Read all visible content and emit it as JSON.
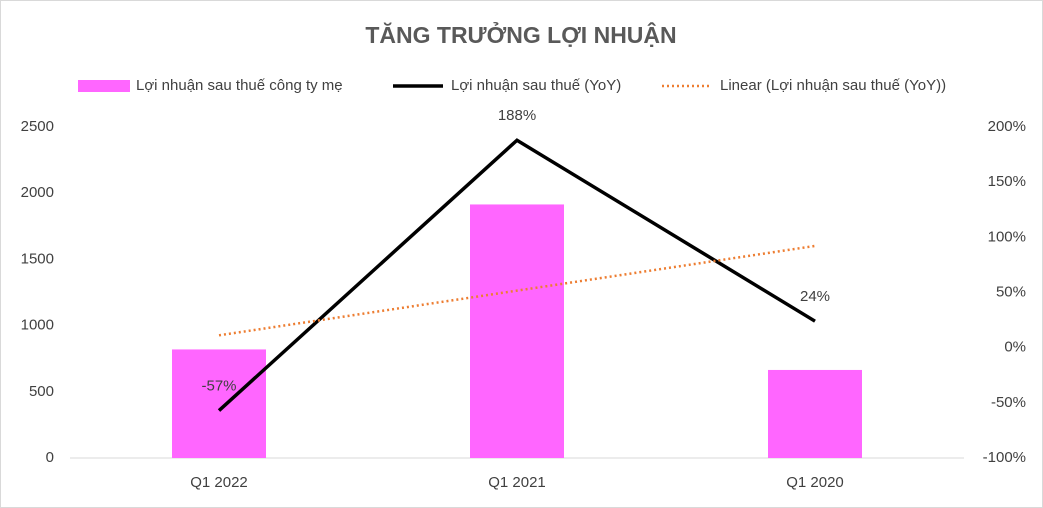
{
  "chart_data": {
    "type": "combo",
    "title": "TĂNG TRƯỞNG LỢI NHUẬN",
    "categories": [
      "Q1 2022",
      "Q1 2021",
      "Q1 2020"
    ],
    "series": [
      {
        "name": "Lợi nhuận sau thuế công ty mẹ",
        "type": "bar",
        "color": "#ff66ff",
        "values": [
          820,
          1915,
          665
        ]
      },
      {
        "name": "Lợi nhuận sau thuế (YoY)",
        "type": "line",
        "axis": "y2",
        "color": "#000000",
        "values": [
          -57,
          188,
          24
        ],
        "value_labels": [
          "-57%",
          "188%",
          "24%"
        ]
      },
      {
        "name": "Linear (Lợi nhuận sau thuế (YoY))",
        "type": "line",
        "axis": "y2",
        "dash": "dotted",
        "color": "#ed7d31",
        "values": [
          11.2,
          51.7,
          92.2
        ]
      }
    ],
    "ylim": [
      0,
      2500
    ],
    "yticks": [
      0,
      500,
      1000,
      1500,
      2000,
      2500
    ],
    "y2lim": [
      -100,
      200
    ],
    "y2ticks": [
      {
        "value": -100,
        "label": "-100%"
      },
      {
        "value": -50,
        "label": "-50%"
      },
      {
        "value": 0,
        "label": "0%"
      },
      {
        "value": 50,
        "label": "50%"
      },
      {
        "value": 100,
        "label": "100%"
      },
      {
        "value": 150,
        "label": "150%"
      },
      {
        "value": 200,
        "label": "200%"
      }
    ],
    "legend": "top",
    "grid": false
  }
}
